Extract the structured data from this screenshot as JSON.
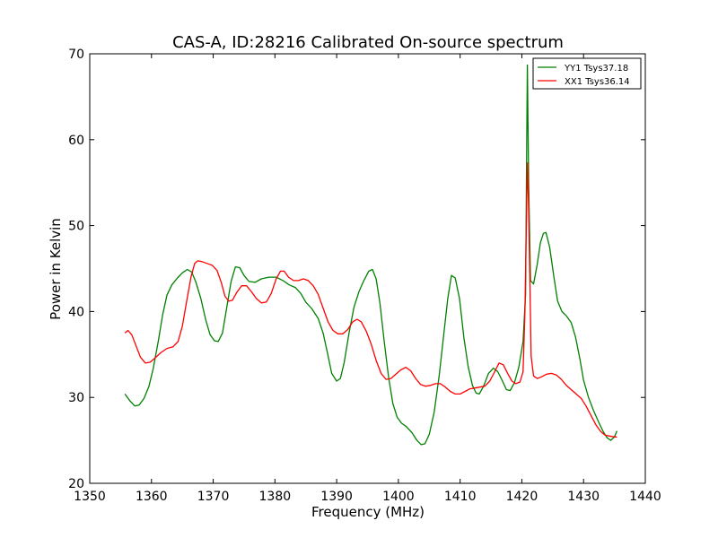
{
  "chart_data": {
    "type": "line",
    "title": "CAS-A, ID:28216 Calibrated On-source spectrum",
    "xlabel": "Frequency (MHz)",
    "ylabel": "Power in Kelvin",
    "xlim": [
      1350,
      1440
    ],
    "ylim": [
      20,
      70
    ],
    "xticks": [
      1350,
      1360,
      1370,
      1380,
      1390,
      1400,
      1410,
      1420,
      1430,
      1440
    ],
    "yticks": [
      20,
      30,
      40,
      50,
      60,
      70
    ],
    "xtick_labels": [
      "1350",
      "1360",
      "1370",
      "1380",
      "1390",
      "1400",
      "1410",
      "1420",
      "1430",
      "1440"
    ],
    "ytick_labels": [
      "20",
      "30",
      "40",
      "50",
      "60",
      "70"
    ],
    "grid": false,
    "legend_position": "top-right",
    "series": [
      {
        "name": "YY1 Tsys37.18",
        "color": "#008000",
        "points": [
          [
            1355.7,
            30.4
          ],
          [
            1356.5,
            29.6
          ],
          [
            1357.3,
            29.0
          ],
          [
            1358.0,
            29.1
          ],
          [
            1358.8,
            29.9
          ],
          [
            1359.6,
            31.3
          ],
          [
            1360.3,
            33.4
          ],
          [
            1361.1,
            36.5
          ],
          [
            1361.8,
            39.6
          ],
          [
            1362.5,
            41.9
          ],
          [
            1363.3,
            43.1
          ],
          [
            1364.2,
            43.9
          ],
          [
            1365.0,
            44.5
          ],
          [
            1365.8,
            44.9
          ],
          [
            1366.5,
            44.6
          ],
          [
            1367.2,
            43.4
          ],
          [
            1368.0,
            41.5
          ],
          [
            1368.8,
            39.0
          ],
          [
            1369.5,
            37.3
          ],
          [
            1370.2,
            36.6
          ],
          [
            1370.8,
            36.5
          ],
          [
            1371.5,
            37.5
          ],
          [
            1372.2,
            40.5
          ],
          [
            1372.9,
            43.5
          ],
          [
            1373.6,
            45.2
          ],
          [
            1374.3,
            45.1
          ],
          [
            1375.0,
            44.2
          ],
          [
            1375.8,
            43.5
          ],
          [
            1376.8,
            43.4
          ],
          [
            1377.8,
            43.8
          ],
          [
            1379.0,
            44.0
          ],
          [
            1380.2,
            44.0
          ],
          [
            1381.3,
            43.6
          ],
          [
            1382.3,
            43.1
          ],
          [
            1383.3,
            42.8
          ],
          [
            1384.2,
            42.1
          ],
          [
            1385.0,
            41.1
          ],
          [
            1386.0,
            40.3
          ],
          [
            1387.0,
            39.2
          ],
          [
            1387.8,
            37.5
          ],
          [
            1388.5,
            35.2
          ],
          [
            1389.2,
            32.8
          ],
          [
            1390.0,
            31.9
          ],
          [
            1390.6,
            32.2
          ],
          [
            1391.2,
            34.0
          ],
          [
            1392.0,
            37.5
          ],
          [
            1392.8,
            40.5
          ],
          [
            1393.6,
            42.3
          ],
          [
            1394.4,
            43.6
          ],
          [
            1395.2,
            44.7
          ],
          [
            1395.8,
            44.9
          ],
          [
            1396.4,
            43.8
          ],
          [
            1397.0,
            41.0
          ],
          [
            1397.7,
            36.5
          ],
          [
            1398.4,
            32.4
          ],
          [
            1399.1,
            29.3
          ],
          [
            1399.8,
            27.7
          ],
          [
            1400.5,
            27.0
          ],
          [
            1401.3,
            26.6
          ],
          [
            1402.2,
            25.9
          ],
          [
            1403.0,
            25.0
          ],
          [
            1403.7,
            24.5
          ],
          [
            1404.3,
            24.6
          ],
          [
            1405.0,
            25.7
          ],
          [
            1405.8,
            28.3
          ],
          [
            1406.6,
            32.5
          ],
          [
            1407.3,
            37.0
          ],
          [
            1408.0,
            41.5
          ],
          [
            1408.6,
            44.2
          ],
          [
            1409.2,
            43.9
          ],
          [
            1409.9,
            41.5
          ],
          [
            1410.6,
            37.0
          ],
          [
            1411.3,
            33.6
          ],
          [
            1412.0,
            31.4
          ],
          [
            1412.6,
            30.5
          ],
          [
            1413.1,
            30.4
          ],
          [
            1413.8,
            31.3
          ],
          [
            1414.6,
            32.8
          ],
          [
            1415.4,
            33.4
          ],
          [
            1416.1,
            33.0
          ],
          [
            1416.8,
            32.0
          ],
          [
            1417.5,
            30.9
          ],
          [
            1418.1,
            30.8
          ],
          [
            1418.8,
            31.7
          ],
          [
            1419.5,
            33.5
          ],
          [
            1420.2,
            36.5
          ],
          [
            1420.6,
            42.0
          ],
          [
            1420.8,
            60.0
          ],
          [
            1420.9,
            68.7
          ],
          [
            1421.1,
            55.0
          ],
          [
            1421.4,
            43.6
          ],
          [
            1421.9,
            43.2
          ],
          [
            1422.5,
            45.5
          ],
          [
            1423.0,
            48.0
          ],
          [
            1423.5,
            49.1
          ],
          [
            1423.9,
            49.2
          ],
          [
            1424.5,
            47.5
          ],
          [
            1425.2,
            44.0
          ],
          [
            1425.8,
            41.2
          ],
          [
            1426.5,
            40.0
          ],
          [
            1427.2,
            39.5
          ],
          [
            1428.0,
            38.7
          ],
          [
            1428.7,
            37.0
          ],
          [
            1429.4,
            34.5
          ],
          [
            1430.0,
            32.0
          ],
          [
            1430.8,
            30.0
          ],
          [
            1431.6,
            28.5
          ],
          [
            1432.4,
            27.2
          ],
          [
            1433.2,
            26.0
          ],
          [
            1433.8,
            25.3
          ],
          [
            1434.4,
            25.0
          ],
          [
            1435.0,
            25.4
          ],
          [
            1435.4,
            26.1
          ]
        ]
      },
      {
        "name": "XX1 Tsys36.14",
        "color": "#ff0000",
        "points": [
          [
            1355.7,
            37.5
          ],
          [
            1356.2,
            37.8
          ],
          [
            1356.8,
            37.3
          ],
          [
            1357.5,
            36.0
          ],
          [
            1358.2,
            34.7
          ],
          [
            1359.0,
            34.0
          ],
          [
            1359.8,
            34.1
          ],
          [
            1360.6,
            34.6
          ],
          [
            1361.5,
            35.2
          ],
          [
            1362.5,
            35.7
          ],
          [
            1363.5,
            35.9
          ],
          [
            1364.3,
            36.5
          ],
          [
            1365.0,
            38.3
          ],
          [
            1365.7,
            41.2
          ],
          [
            1366.4,
            44.0
          ],
          [
            1367.0,
            45.6
          ],
          [
            1367.5,
            45.9
          ],
          [
            1368.2,
            45.8
          ],
          [
            1369.0,
            45.6
          ],
          [
            1369.8,
            45.4
          ],
          [
            1370.6,
            44.8
          ],
          [
            1371.3,
            43.4
          ],
          [
            1371.9,
            41.8
          ],
          [
            1372.5,
            41.2
          ],
          [
            1373.1,
            41.3
          ],
          [
            1373.8,
            42.2
          ],
          [
            1374.6,
            43.0
          ],
          [
            1375.4,
            43.0
          ],
          [
            1376.2,
            42.3
          ],
          [
            1377.0,
            41.5
          ],
          [
            1377.8,
            41.0
          ],
          [
            1378.6,
            41.1
          ],
          [
            1379.4,
            42.1
          ],
          [
            1380.2,
            43.8
          ],
          [
            1380.9,
            44.7
          ],
          [
            1381.5,
            44.7
          ],
          [
            1382.2,
            44.0
          ],
          [
            1383.0,
            43.6
          ],
          [
            1383.8,
            43.6
          ],
          [
            1384.6,
            43.8
          ],
          [
            1385.4,
            43.6
          ],
          [
            1386.2,
            43.0
          ],
          [
            1387.0,
            42.0
          ],
          [
            1387.8,
            40.4
          ],
          [
            1388.6,
            38.8
          ],
          [
            1389.4,
            37.8
          ],
          [
            1390.2,
            37.4
          ],
          [
            1391.0,
            37.4
          ],
          [
            1391.8,
            37.9
          ],
          [
            1392.6,
            38.8
          ],
          [
            1393.3,
            39.1
          ],
          [
            1394.0,
            38.8
          ],
          [
            1394.8,
            37.7
          ],
          [
            1395.6,
            36.2
          ],
          [
            1396.4,
            34.3
          ],
          [
            1397.2,
            32.8
          ],
          [
            1398.0,
            32.1
          ],
          [
            1398.8,
            32.2
          ],
          [
            1399.6,
            32.7
          ],
          [
            1400.4,
            33.2
          ],
          [
            1401.2,
            33.5
          ],
          [
            1402.0,
            33.1
          ],
          [
            1402.8,
            32.2
          ],
          [
            1403.6,
            31.5
          ],
          [
            1404.4,
            31.3
          ],
          [
            1405.2,
            31.4
          ],
          [
            1406.0,
            31.6
          ],
          [
            1406.8,
            31.6
          ],
          [
            1407.6,
            31.2
          ],
          [
            1408.4,
            30.7
          ],
          [
            1409.2,
            30.4
          ],
          [
            1410.0,
            30.4
          ],
          [
            1410.8,
            30.7
          ],
          [
            1411.6,
            31.0
          ],
          [
            1412.4,
            31.1
          ],
          [
            1413.2,
            31.2
          ],
          [
            1414.0,
            31.3
          ],
          [
            1414.8,
            31.9
          ],
          [
            1415.6,
            33.0
          ],
          [
            1416.3,
            34.0
          ],
          [
            1417.0,
            33.8
          ],
          [
            1417.7,
            32.8
          ],
          [
            1418.4,
            31.9
          ],
          [
            1419.0,
            31.6
          ],
          [
            1419.7,
            31.8
          ],
          [
            1420.2,
            33.0
          ],
          [
            1420.5,
            40.0
          ],
          [
            1420.8,
            53.0
          ],
          [
            1420.95,
            57.3
          ],
          [
            1421.2,
            48.0
          ],
          [
            1421.5,
            34.8
          ],
          [
            1421.9,
            32.5
          ],
          [
            1422.5,
            32.2
          ],
          [
            1423.2,
            32.4
          ],
          [
            1424.0,
            32.7
          ],
          [
            1424.8,
            32.8
          ],
          [
            1425.6,
            32.6
          ],
          [
            1426.4,
            32.1
          ],
          [
            1427.2,
            31.4
          ],
          [
            1428.0,
            30.9
          ],
          [
            1428.8,
            30.4
          ],
          [
            1429.6,
            29.9
          ],
          [
            1430.4,
            29.0
          ],
          [
            1431.2,
            27.9
          ],
          [
            1432.0,
            26.8
          ],
          [
            1432.8,
            26.0
          ],
          [
            1433.5,
            25.6
          ],
          [
            1434.2,
            25.5
          ],
          [
            1435.0,
            25.4
          ],
          [
            1435.4,
            25.4
          ]
        ]
      }
    ]
  }
}
